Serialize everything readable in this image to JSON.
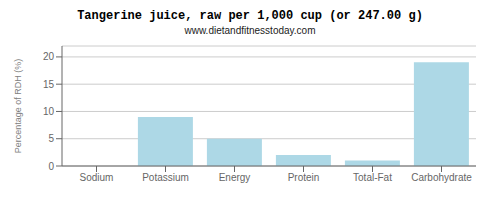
{
  "chart_data": {
    "type": "bar",
    "title": "Tangerine juice, raw per 1,000 cup (or 247.00 g)",
    "subtitle": "www.dietandfitnesstoday.com",
    "categories": [
      "Sodium",
      "Potassium",
      "Energy",
      "Protein",
      "Total-Fat",
      "Carbohydrate"
    ],
    "values": [
      0.0,
      9.0,
      5.0,
      2.0,
      1.0,
      19.0
    ],
    "color": "#add8e6",
    "ylabel": "Percentage of RDH (%)",
    "ylim": [
      0,
      22
    ],
    "yticks": [
      0,
      5,
      10,
      15,
      20
    ],
    "grid": true
  }
}
